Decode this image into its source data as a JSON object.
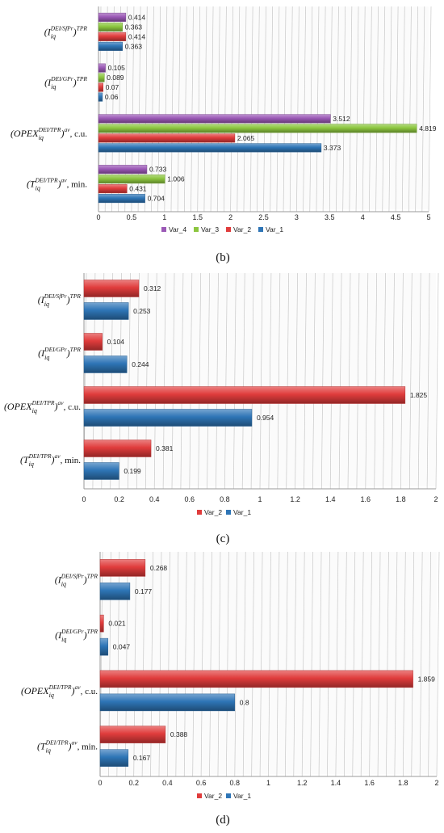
{
  "chart_data": [
    {
      "type": "bar",
      "orientation": "horizontal",
      "panel_label": "(b)",
      "categories": [
        {
          "prefix": "(T",
          "sup": "DEI/TPR",
          "sub": "iq",
          "mid": ")",
          "sup2": "av",
          "suffix": ", min."
        },
        {
          "prefix": "(OPEX",
          "sup": "DEI/TPR",
          "sub": "iq",
          "mid": ")",
          "sup2": "av",
          "suffix": ", c.u."
        },
        {
          "prefix": "(I",
          "sup": "DEI/GPr",
          "sub": "iq",
          "mid": ")",
          "sup2": "TPR",
          "suffix": ""
        },
        {
          "prefix": "(I",
          "sup": "DEI/SfPr",
          "sub": "iq",
          "mid": ")",
          "sup2": "TPR",
          "suffix": ""
        }
      ],
      "series": [
        {
          "name": "Var_1",
          "color": "#2e75b6",
          "values": [
            0.704,
            3.373,
            0.06,
            0.363
          ]
        },
        {
          "name": "Var_2",
          "color": "#e03c3c",
          "values": [
            0.431,
            2.065,
            0.07,
            0.414
          ]
        },
        {
          "name": "Var_3",
          "color": "#8cc63f",
          "values": [
            1.006,
            4.819,
            0.089,
            0.363
          ]
        },
        {
          "name": "Var_4",
          "color": "#9b59b6",
          "values": [
            0.733,
            3.512,
            0.105,
            0.414
          ]
        }
      ],
      "data_labels": [
        [
          "0.704",
          "3.373",
          "0.06",
          "0.363"
        ],
        [
          "0.431",
          "2.065",
          "0.07",
          "0.414"
        ],
        [
          "1.006",
          "4.819",
          "0.089",
          "0.363"
        ],
        [
          "0.733",
          "3.512",
          "0.105",
          "0.414"
        ]
      ],
      "xlim": [
        0,
        5
      ],
      "xticks": [
        "0",
        "0.5",
        "1",
        "1.5",
        "2",
        "2.5",
        "3",
        "3.5",
        "4",
        "4.5",
        "5"
      ],
      "legend_order": [
        "Var_4",
        "Var_3",
        "Var_2",
        "Var_1"
      ],
      "legend_position": "bottom",
      "grid": true
    },
    {
      "type": "bar",
      "orientation": "horizontal",
      "panel_label": "(c)",
      "categories": [
        {
          "prefix": "(T",
          "sup": "DEI/TPR",
          "sub": "iq",
          "mid": ")",
          "sup2": "av",
          "suffix": ", min."
        },
        {
          "prefix": "(OPEX",
          "sup": "DEI/TPR",
          "sub": "iq",
          "mid": ")",
          "sup2": "av",
          "suffix": ", c.u."
        },
        {
          "prefix": "(I",
          "sup": "DEI/GPr",
          "sub": "iq",
          "mid": ")",
          "sup2": "TPR",
          "suffix": ""
        },
        {
          "prefix": "(I",
          "sup": "DEI/SfPr",
          "sub": "iq",
          "mid": ")",
          "sup2": "TPR",
          "suffix": ""
        }
      ],
      "series": [
        {
          "name": "Var_1",
          "color": "#2e75b6",
          "values": [
            0.199,
            0.954,
            0.244,
            0.253
          ]
        },
        {
          "name": "Var_2",
          "color": "#e03c3c",
          "values": [
            0.381,
            1.825,
            0.104,
            0.312
          ]
        }
      ],
      "data_labels": [
        [
          "0.199",
          "0.954",
          "0.244",
          "0.253"
        ],
        [
          "0.381",
          "1.825",
          "0.104",
          "0.312"
        ]
      ],
      "xlim": [
        0,
        2
      ],
      "xticks": [
        "0",
        "0.2",
        "0.4",
        "0.6",
        "0.8",
        "1",
        "1.2",
        "1.4",
        "1.6",
        "1.8",
        "2"
      ],
      "legend_order": [
        "Var_2",
        "Var_1"
      ],
      "legend_position": "bottom",
      "grid": true
    },
    {
      "type": "bar",
      "orientation": "horizontal",
      "panel_label": "(d)",
      "categories": [
        {
          "prefix": "(T",
          "sup": "DEI/TPR",
          "sub": "iq",
          "mid": ")",
          "sup2": "av",
          "suffix": ", min."
        },
        {
          "prefix": "(OPEX",
          "sup": "DEI/TPR",
          "sub": "iq",
          "mid": ")",
          "sup2": "av",
          "suffix": ", c.u."
        },
        {
          "prefix": "(I",
          "sup": "DEI/GPr",
          "sub": "iq",
          "mid": ")",
          "sup2": "TPR",
          "suffix": ""
        },
        {
          "prefix": "(I",
          "sup": "DEI/SfPr",
          "sub": "iq",
          "mid": ")",
          "sup2": "TPR",
          "suffix": ""
        }
      ],
      "series": [
        {
          "name": "Var_1",
          "color": "#2e75b6",
          "values": [
            0.167,
            0.8,
            0.047,
            0.177
          ]
        },
        {
          "name": "Var_2",
          "color": "#e03c3c",
          "values": [
            0.388,
            1.859,
            0.021,
            0.268
          ]
        }
      ],
      "data_labels": [
        [
          "0.167",
          "0.8",
          "0.047",
          "0.177"
        ],
        [
          "0.388",
          "1.859",
          "0.021",
          "0.268"
        ]
      ],
      "xlim": [
        0,
        2
      ],
      "xticks": [
        "0",
        "0.2",
        "0.4",
        "0.6",
        "0.8",
        "1",
        "1.2",
        "1.4",
        "1.6",
        "1.8",
        "2"
      ],
      "legend_order": [
        "Var_2",
        "Var_1"
      ],
      "legend_position": "bottom",
      "grid": true
    }
  ]
}
